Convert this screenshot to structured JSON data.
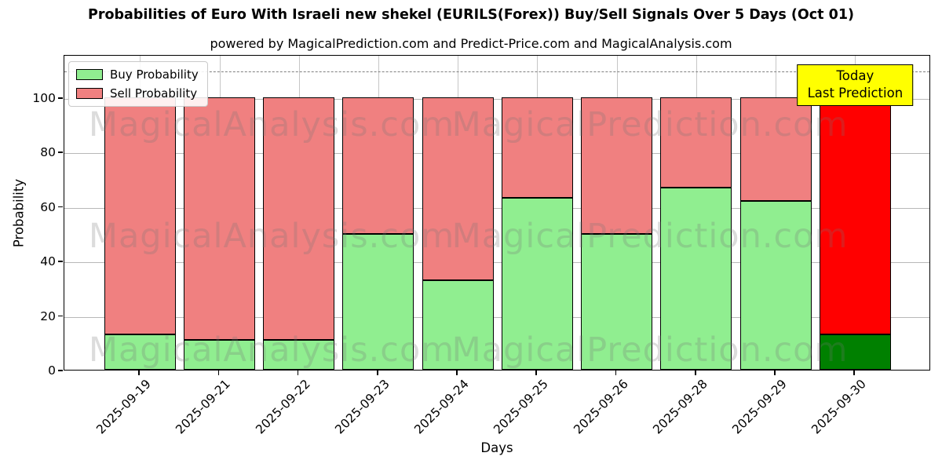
{
  "title": "Probabilities of Euro With Israeli new shekel (EURILS(Forex)) Buy/Sell Signals Over 5 Days (Oct 01)",
  "subtitle": "powered by MagicalPrediction.com and Predict-Price.com and MagicalAnalysis.com",
  "legend": {
    "buy_label": "Buy Probability",
    "sell_label": "Sell Probability"
  },
  "annotation": {
    "line1": "Today",
    "line2": "Last Prediction",
    "bg_color": "#ffff00"
  },
  "watermarks": {
    "left_text": "MagicalAnalysis.com",
    "right_text": "MagicalPrediction.com"
  },
  "chart_data": {
    "type": "bar",
    "stacked": true,
    "title": "Probabilities of Euro With Israeli new shekel (EURILS(Forex)) Buy/Sell Signals Over 5 Days (Oct 01)",
    "xlabel": "Days",
    "ylabel": "Probability",
    "categories": [
      "2025-09-19",
      "2025-09-21",
      "2025-09-22",
      "2025-09-23",
      "2025-09-24",
      "2025-09-25",
      "2025-09-26",
      "2025-09-28",
      "2025-09-29",
      "2025-09-30"
    ],
    "series": [
      {
        "name": "Buy Probability",
        "color": "#90ee90",
        "values": [
          13,
          11,
          11,
          50,
          33,
          63,
          50,
          67,
          62,
          13
        ]
      },
      {
        "name": "Sell Probability",
        "color": "#f08080",
        "values": [
          87,
          89,
          89,
          50,
          67,
          37,
          50,
          33,
          38,
          87
        ]
      }
    ],
    "last_bar_colors": {
      "buy": "#008000",
      "sell": "#ff0000"
    },
    "yticks": [
      0,
      20,
      40,
      60,
      80,
      100
    ],
    "ylim": [
      0,
      116
    ],
    "threshold_dashed_line_y": 110,
    "grid": true,
    "legend_position": "upper left",
    "bar_edge_color": "#000000"
  }
}
